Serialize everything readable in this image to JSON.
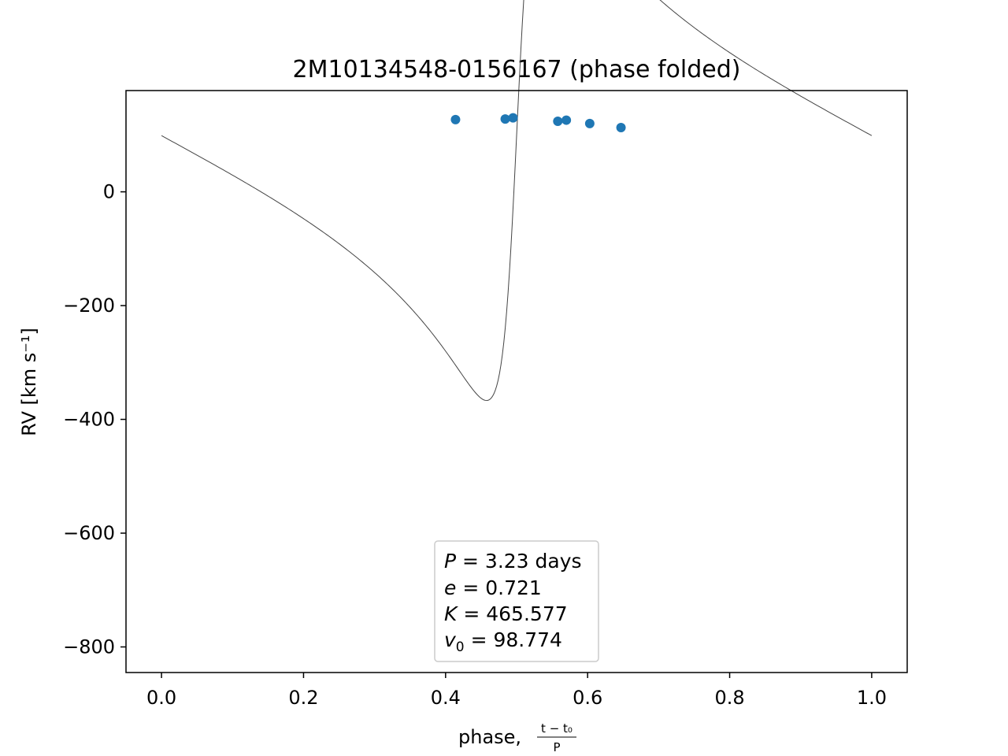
{
  "chart_data": {
    "type": "scatter",
    "title": "2M10134548-0156167 (phase folded)",
    "xlabel": "phase,",
    "xlabel_fraction": {
      "numerator": "t − t₀",
      "denominator": "P"
    },
    "ylabel": "RV [km s⁻¹]",
    "xlim": [
      -0.05,
      1.05
    ],
    "ylim": [
      -845,
      178
    ],
    "xticks": [
      0.0,
      0.2,
      0.4,
      0.6,
      0.8,
      1.0
    ],
    "xtick_labels": [
      "0.0",
      "0.2",
      "0.4",
      "0.6",
      "0.8",
      "1.0"
    ],
    "yticks": [
      0,
      -200,
      -400,
      -600,
      -800
    ],
    "ytick_labels": [
      "0",
      "−200",
      "−400",
      "−600",
      "−800"
    ],
    "grid": false,
    "series": [
      {
        "kind": "scatter",
        "color": "#1f77b4",
        "points": [
          {
            "x": 0.414,
            "y": 127
          },
          {
            "x": 0.484,
            "y": 128
          },
          {
            "x": 0.495,
            "y": 130
          },
          {
            "x": 0.558,
            "y": 124
          },
          {
            "x": 0.57,
            "y": 126
          },
          {
            "x": 0.603,
            "y": 120
          },
          {
            "x": 0.647,
            "y": 113
          }
        ]
      },
      {
        "kind": "line",
        "color": "#444444",
        "model": "keplerian",
        "params": {
          "e": 0.721,
          "K": 465.577,
          "v0": 98.774,
          "omega": -1.571,
          "M_offset": 3.14159,
          "samples": 500
        }
      }
    ],
    "annotation_box": {
      "position": "bottom-center",
      "lines": [
        {
          "sym": "P",
          "sub": "",
          "value": " = 3.23 days"
        },
        {
          "sym": "e",
          "sub": "",
          "value": " = 0.721"
        },
        {
          "sym": "K",
          "sub": "",
          "value": " = 465.577"
        },
        {
          "sym": "v",
          "sub": "0",
          "value": " = 98.774"
        }
      ]
    }
  }
}
